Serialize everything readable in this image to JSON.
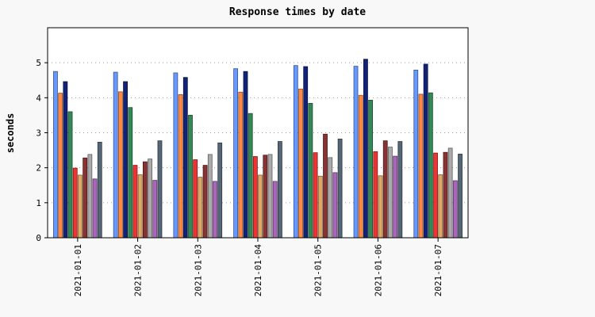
{
  "chart_data": {
    "type": "bar",
    "title": "Response times by date",
    "xlabel": "",
    "ylabel": "seconds",
    "ylim": [
      0,
      6
    ],
    "yticks": [
      0,
      1,
      2,
      3,
      4,
      5
    ],
    "grid": true,
    "legend": "none",
    "categories": [
      "2021-01-01",
      "2021-01-02",
      "2021-01-03",
      "2021-01-04",
      "2021-01-05",
      "2021-01-06",
      "2021-01-07"
    ],
    "series": [
      {
        "color": "#6699ff",
        "values": [
          4.75,
          4.73,
          4.71,
          4.83,
          4.92,
          4.9,
          4.79
        ]
      },
      {
        "color": "#ff8844",
        "values": [
          4.13,
          4.17,
          4.09,
          4.16,
          4.25,
          4.07,
          4.1
        ]
      },
      {
        "color": "#112277",
        "values": [
          4.46,
          4.46,
          4.58,
          4.75,
          4.89,
          5.1,
          4.96
        ]
      },
      {
        "color": "#338855",
        "values": [
          3.6,
          3.72,
          3.5,
          3.55,
          3.84,
          3.93,
          4.14
        ]
      },
      {
        "color": "#ee3333",
        "values": [
          1.99,
          2.07,
          2.23,
          2.32,
          2.43,
          2.46,
          2.42
        ]
      },
      {
        "color": "#ddaa66",
        "values": [
          1.79,
          1.8,
          1.73,
          1.79,
          1.76,
          1.77,
          1.8
        ]
      },
      {
        "color": "#883333",
        "values": [
          2.28,
          2.17,
          2.07,
          2.36,
          2.96,
          2.77,
          2.44
        ]
      },
      {
        "color": "#aaaaaa",
        "values": [
          2.38,
          2.25,
          2.38,
          2.38,
          2.29,
          2.59,
          2.56
        ]
      },
      {
        "color": "#aa66bb",
        "values": [
          1.68,
          1.64,
          1.61,
          1.61,
          1.86,
          2.33,
          1.63
        ]
      },
      {
        "color": "#556677",
        "values": [
          2.73,
          2.77,
          2.71,
          2.75,
          2.82,
          2.75,
          2.39
        ]
      }
    ]
  }
}
